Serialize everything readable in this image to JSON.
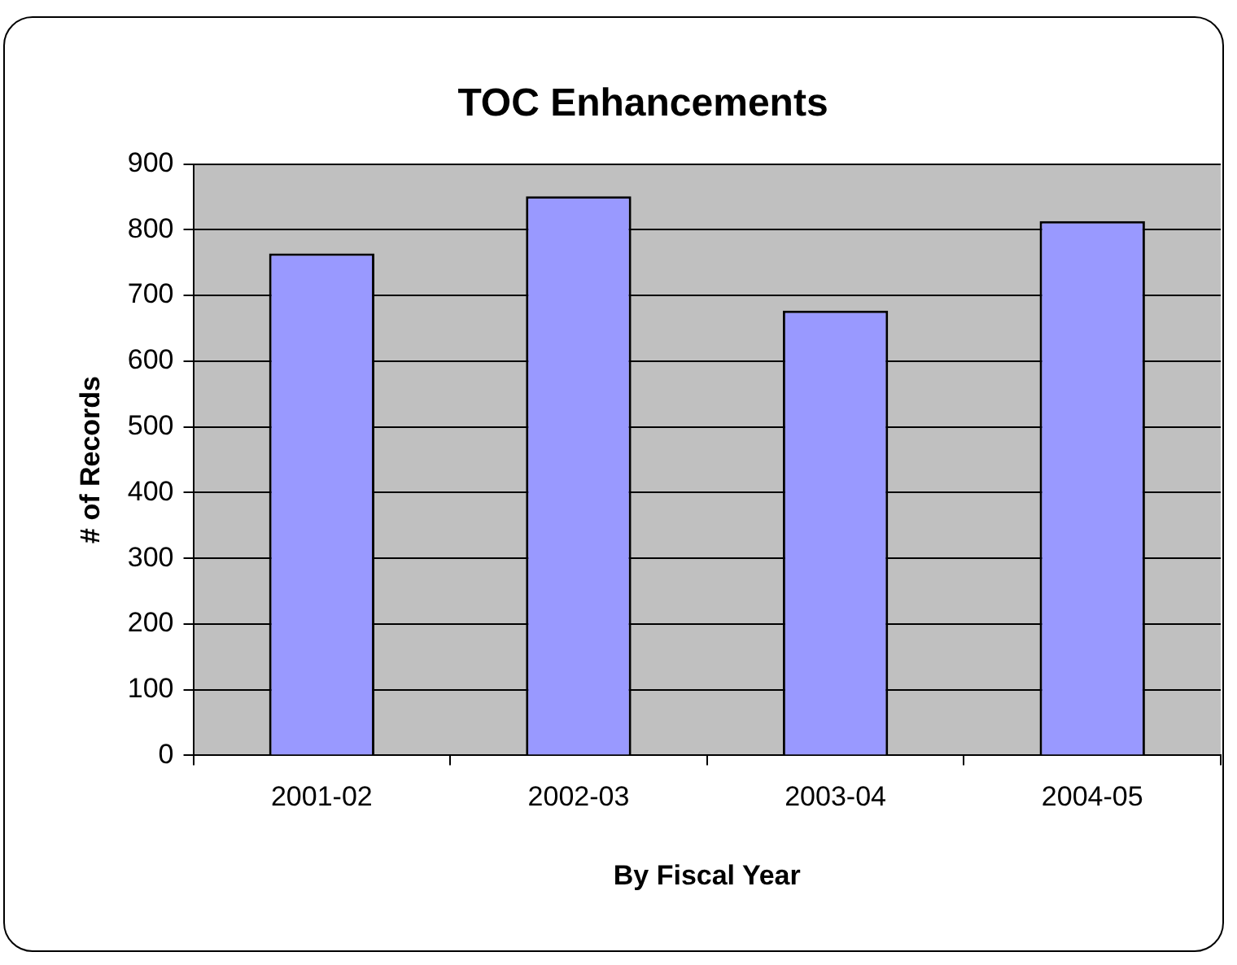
{
  "chart_data": {
    "type": "bar",
    "title": "TOC Enhancements",
    "xlabel": "By Fiscal Year",
    "ylabel": "# of Records",
    "categories": [
      "2001-02",
      "2002-03",
      "2003-04",
      "2004-05"
    ],
    "values": [
      764,
      851,
      677,
      813
    ],
    "color": "#9999ff",
    "ylim": [
      0,
      900
    ],
    "yticks": [
      0,
      100,
      200,
      300,
      400,
      500,
      600,
      700,
      800,
      900
    ],
    "grid": "y",
    "legend": false
  }
}
